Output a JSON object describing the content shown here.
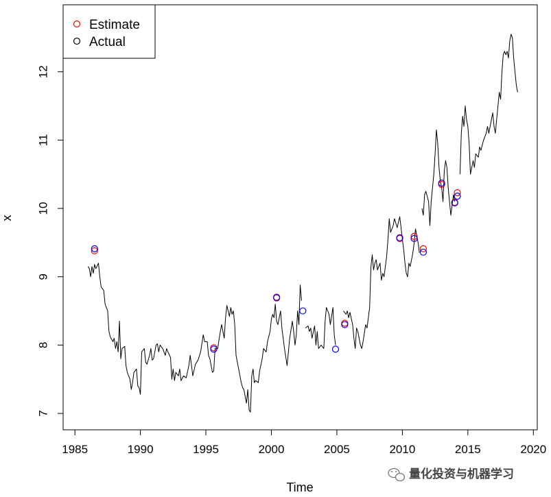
{
  "chart_data": {
    "type": "scatter",
    "title": "",
    "xlabel": "Time",
    "ylabel": "x",
    "xlim": [
      1984.1,
      2020.3
    ],
    "ylim": [
      6.76,
      12.98
    ],
    "xticks": [
      1985,
      1990,
      1995,
      2000,
      2005,
      2010,
      2015,
      2020
    ],
    "xtick_labels": [
      "1985",
      "1990",
      "1995",
      "2000",
      "2005",
      "2010",
      "2015",
      "2020"
    ],
    "yticks": [
      7,
      8,
      9,
      10,
      11,
      12
    ],
    "ytick_labels": [
      "7",
      "8",
      "9",
      "10",
      "11",
      "12"
    ],
    "grid": false,
    "legend_position": "top-left",
    "legend": [
      {
        "label": "Estimate",
        "color": "#ff0000"
      },
      {
        "label": "Actual",
        "color": "#000000"
      }
    ],
    "colors": {
      "estimate": "#ff0000",
      "actual": "#0000ff",
      "line": "#000000"
    },
    "line_series": {
      "segments": [
        [
          [
            1986.0,
            9.15
          ],
          [
            1986.1,
            9.12
          ],
          [
            1986.2,
            9.0
          ],
          [
            1986.3,
            9.15
          ],
          [
            1986.4,
            9.05
          ],
          [
            1986.5,
            9.18
          ],
          [
            1986.6,
            9.12
          ],
          [
            1986.8,
            9.2
          ],
          [
            1986.9,
            9.0
          ],
          [
            1987.0,
            8.85
          ],
          [
            1987.2,
            8.8
          ],
          [
            1987.3,
            8.6
          ],
          [
            1987.5,
            8.5
          ],
          [
            1987.6,
            8.2
          ],
          [
            1987.7,
            8.12
          ],
          [
            1987.9,
            8.05
          ],
          [
            1988.0,
            8.1
          ],
          [
            1988.1,
            7.95
          ],
          [
            1988.2,
            8.05
          ],
          [
            1988.3,
            7.9
          ],
          [
            1988.4,
            8.35
          ],
          [
            1988.5,
            7.8
          ],
          [
            1988.6,
            7.95
          ],
          [
            1988.8,
            7.98
          ],
          [
            1988.9,
            7.7
          ],
          [
            1989.0,
            7.6
          ],
          [
            1989.2,
            7.5
          ],
          [
            1989.3,
            7.35
          ],
          [
            1989.4,
            7.45
          ],
          [
            1989.5,
            7.6
          ],
          [
            1989.7,
            7.65
          ],
          [
            1989.8,
            7.4
          ],
          [
            1989.9,
            7.38
          ],
          [
            1990.0,
            7.28
          ],
          [
            1990.1,
            7.9
          ],
          [
            1990.3,
            7.95
          ],
          [
            1990.4,
            7.75
          ],
          [
            1990.5,
            7.72
          ],
          [
            1990.7,
            7.85
          ],
          [
            1990.8,
            7.95
          ],
          [
            1990.9,
            7.78
          ],
          [
            1991.0,
            7.8
          ],
          [
            1991.2,
            8.0
          ],
          [
            1991.3,
            8.02
          ],
          [
            1991.4,
            7.9
          ],
          [
            1991.5,
            8.0
          ],
          [
            1991.7,
            7.95
          ],
          [
            1991.9,
            7.85
          ],
          [
            1992.0,
            7.95
          ],
          [
            1992.1,
            7.9
          ],
          [
            1992.3,
            7.82
          ],
          [
            1992.4,
            7.5
          ],
          [
            1992.5,
            7.65
          ],
          [
            1992.6,
            7.48
          ],
          [
            1992.7,
            7.6
          ],
          [
            1992.9,
            7.55
          ],
          [
            1993.0,
            7.65
          ],
          [
            1993.1,
            7.48
          ],
          [
            1993.3,
            7.55
          ],
          [
            1993.5,
            7.52
          ],
          [
            1993.7,
            7.7
          ],
          [
            1993.8,
            7.85
          ],
          [
            1994.0,
            7.55
          ],
          [
            1994.2,
            7.72
          ],
          [
            1994.4,
            7.78
          ],
          [
            1994.6,
            7.9
          ],
          [
            1994.8,
            8.15
          ],
          [
            1994.9,
            8.05
          ],
          [
            1995.1,
            8.05
          ],
          [
            1995.2,
            7.85
          ],
          [
            1995.3,
            7.8
          ],
          [
            1995.5,
            7.6
          ],
          [
            1995.6,
            7.62
          ],
          [
            1995.7,
            7.95
          ],
          [
            1995.9,
            7.95
          ],
          [
            1996.1,
            8.2
          ],
          [
            1996.2,
            8.3
          ],
          [
            1996.4,
            8.1
          ],
          [
            1996.5,
            8.4
          ],
          [
            1996.6,
            8.58
          ],
          [
            1996.8,
            8.42
          ],
          [
            1996.9,
            8.55
          ],
          [
            1997.0,
            8.45
          ],
          [
            1997.1,
            8.5
          ],
          [
            1997.2,
            8.3
          ],
          [
            1997.3,
            7.85
          ],
          [
            1997.4,
            7.75
          ],
          [
            1997.6,
            7.55
          ],
          [
            1997.7,
            7.45
          ],
          [
            1997.8,
            7.38
          ],
          [
            1997.9,
            7.35
          ],
          [
            1998.0,
            7.25
          ],
          [
            1998.1,
            7.15
          ],
          [
            1998.2,
            7.35
          ],
          [
            1998.3,
            7.05
          ],
          [
            1998.4,
            7.02
          ],
          [
            1998.5,
            7.55
          ],
          [
            1998.6,
            7.65
          ],
          [
            1998.7,
            7.45
          ],
          [
            1998.8,
            7.48
          ],
          [
            1999.0,
            7.45
          ],
          [
            1999.1,
            7.62
          ],
          [
            1999.3,
            7.8
          ],
          [
            1999.4,
            7.95
          ],
          [
            1999.6,
            7.9
          ],
          [
            1999.7,
            8.05
          ],
          [
            1999.9,
            8.2
          ],
          [
            2000.0,
            8.38
          ],
          [
            2000.1,
            8.45
          ],
          [
            2000.2,
            8.4
          ],
          [
            2000.3,
            8.6
          ],
          [
            2000.4,
            8.35
          ],
          [
            2000.5,
            8.3
          ],
          [
            2000.7,
            8.5
          ],
          [
            2000.8,
            8.25
          ],
          [
            2000.9,
            8.1
          ],
          [
            2001.0,
            7.95
          ],
          [
            2001.2,
            7.7
          ],
          [
            2001.3,
            7.9
          ],
          [
            2001.4,
            8.1
          ],
          [
            2001.6,
            8.35
          ],
          [
            2001.7,
            8.2
          ],
          [
            2001.8,
            8.0
          ],
          [
            2001.9,
            8.15
          ],
          [
            2002.0,
            8.5
          ],
          [
            2002.1,
            8.3
          ],
          [
            2002.2,
            8.88
          ],
          [
            2002.3,
            8.65
          ]
        ],
        [
          [
            2002.6,
            8.25
          ],
          [
            2002.8,
            8.28
          ],
          [
            2002.9,
            8.2
          ],
          [
            2003.0,
            8.25
          ],
          [
            2003.1,
            8.1
          ],
          [
            2003.3,
            8.28
          ],
          [
            2003.4,
            8.0
          ],
          [
            2003.5,
            8.2
          ],
          [
            2003.6,
            7.95
          ],
          [
            2003.8,
            8.0
          ],
          [
            2004.0,
            7.95
          ],
          [
            2004.1,
            8.35
          ],
          [
            2004.2,
            8.55
          ],
          [
            2004.4,
            8.45
          ],
          [
            2004.5,
            8.3
          ],
          [
            2004.7,
            8.55
          ],
          [
            2004.8,
            8.15
          ],
          [
            2004.9,
            8.0
          ]
        ],
        [
          [
            2005.5,
            8.5
          ],
          [
            2005.7,
            8.45
          ],
          [
            2005.8,
            8.5
          ],
          [
            2005.9,
            8.4
          ],
          [
            2006.0,
            8.48
          ],
          [
            2006.2,
            8.3
          ],
          [
            2006.3,
            8.1
          ],
          [
            2006.4,
            7.95
          ],
          [
            2006.5,
            8.25
          ],
          [
            2006.6,
            8.2
          ],
          [
            2006.8,
            8.0
          ],
          [
            2006.9,
            7.95
          ],
          [
            2007.0,
            8.05
          ],
          [
            2007.2,
            8.3
          ],
          [
            2007.3,
            8.25
          ],
          [
            2007.5,
            8.55
          ],
          [
            2007.6,
            9.15
          ],
          [
            2007.7,
            9.32
          ],
          [
            2007.8,
            9.1
          ],
          [
            2007.9,
            9.2
          ],
          [
            2008.0,
            9.25
          ],
          [
            2008.1,
            9.1
          ],
          [
            2008.3,
            9.2
          ],
          [
            2008.4,
            8.95
          ],
          [
            2008.5,
            9.05
          ],
          [
            2008.6,
            9.0
          ],
          [
            2008.8,
            9.3
          ],
          [
            2008.9,
            9.55
          ],
          [
            2009.0,
            9.85
          ],
          [
            2009.1,
            9.65
          ],
          [
            2009.3,
            9.75
          ],
          [
            2009.4,
            9.85
          ],
          [
            2009.6,
            9.72
          ],
          [
            2009.7,
            9.8
          ],
          [
            2009.8,
            9.88
          ],
          [
            2010.0,
            9.55
          ],
          [
            2010.1,
            9.4
          ],
          [
            2010.2,
            9.2
          ],
          [
            2010.3,
            9.05
          ],
          [
            2010.4,
            9.0
          ],
          [
            2010.5,
            9.2
          ],
          [
            2010.6,
            9.15
          ],
          [
            2010.8,
            9.35
          ],
          [
            2010.9,
            9.5
          ],
          [
            2011.0,
            9.7
          ],
          [
            2011.2,
            9.5
          ],
          [
            2011.3,
            9.35
          ]
        ],
        [
          [
            2011.5,
            10.0
          ],
          [
            2011.6,
            9.9
          ],
          [
            2011.7,
            10.2
          ],
          [
            2011.8,
            10.25
          ],
          [
            2012.0,
            10.1
          ],
          [
            2012.1,
            9.75
          ],
          [
            2012.2,
            10.1
          ],
          [
            2012.4,
            10.5
          ],
          [
            2012.5,
            10.8
          ],
          [
            2012.6,
            11.15
          ],
          [
            2012.7,
            10.95
          ],
          [
            2012.8,
            10.6
          ],
          [
            2012.9,
            10.4
          ],
          [
            2013.0,
            10.3
          ],
          [
            2013.1,
            10.1
          ],
          [
            2013.2,
            10.55
          ],
          [
            2013.3,
            10.7
          ],
          [
            2013.4,
            10.6
          ],
          [
            2013.5,
            10.3
          ],
          [
            2013.6,
            10.1
          ],
          [
            2013.7,
            9.9
          ],
          [
            2013.8,
            10.05
          ],
          [
            2013.9,
            10.2
          ],
          [
            2014.0,
            10.1
          ]
        ],
        [
          [
            2014.4,
            10.5
          ],
          [
            2014.5,
            11.1
          ],
          [
            2014.6,
            11.35
          ],
          [
            2014.7,
            11.2
          ],
          [
            2014.8,
            11.5
          ],
          [
            2014.9,
            11.3
          ],
          [
            2015.0,
            11.2
          ],
          [
            2015.1,
            10.95
          ],
          [
            2015.2,
            10.5
          ],
          [
            2015.4,
            10.7
          ],
          [
            2015.5,
            10.6
          ],
          [
            2015.6,
            10.8
          ],
          [
            2015.8,
            10.75
          ],
          [
            2015.9,
            10.9
          ],
          [
            2016.0,
            10.85
          ],
          [
            2016.2,
            11.0
          ],
          [
            2016.4,
            11.1
          ],
          [
            2016.5,
            11.2
          ],
          [
            2016.6,
            11.1
          ],
          [
            2016.8,
            11.3
          ],
          [
            2016.9,
            11.4
          ],
          [
            2017.0,
            11.2
          ],
          [
            2017.1,
            11.1
          ],
          [
            2017.2,
            11.3
          ],
          [
            2017.3,
            11.5
          ],
          [
            2017.4,
            11.7
          ],
          [
            2017.5,
            11.6
          ],
          [
            2017.6,
            12.0
          ],
          [
            2017.7,
            12.25
          ],
          [
            2017.8,
            12.3
          ],
          [
            2017.9,
            12.25
          ],
          [
            2018.0,
            12.3
          ],
          [
            2018.1,
            12.2
          ],
          [
            2018.2,
            12.45
          ],
          [
            2018.3,
            12.55
          ],
          [
            2018.4,
            12.5
          ],
          [
            2018.5,
            12.2
          ],
          [
            2018.6,
            12.0
          ],
          [
            2018.7,
            11.8
          ],
          [
            2018.8,
            11.7
          ]
        ]
      ]
    },
    "estimate": {
      "x": [
        1986.5,
        1995.6,
        2000.4,
        2005.6,
        2009.8,
        2010.9,
        2011.6,
        2013.0,
        2014.0,
        2014.2
      ],
      "y": [
        9.38,
        7.96,
        8.69,
        8.32,
        9.56,
        9.59,
        9.41,
        10.35,
        10.09,
        10.23
      ]
    },
    "actual": {
      "x": [
        1986.5,
        1995.6,
        2000.4,
        2002.4,
        2004.9,
        2005.6,
        2009.8,
        2010.9,
        2011.6,
        2013.0,
        2014.0,
        2014.2
      ],
      "y": [
        9.41,
        7.94,
        8.7,
        8.5,
        7.94,
        8.3,
        9.57,
        9.56,
        9.36,
        10.37,
        10.08,
        10.18
      ]
    }
  },
  "watermark": {
    "text": "量化投资与机器学习",
    "icon": "wechat-icon"
  }
}
